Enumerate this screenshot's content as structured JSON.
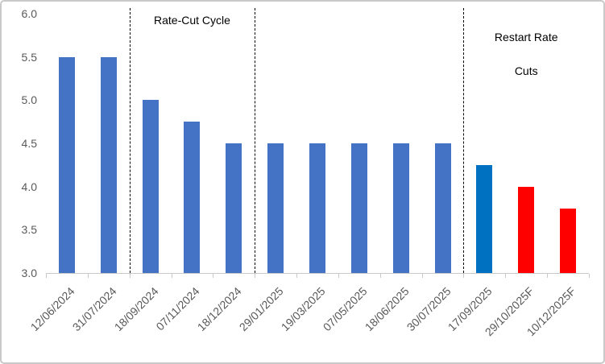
{
  "chart_data": {
    "type": "bar",
    "title": "",
    "xlabel": "",
    "ylabel": "",
    "categories": [
      "12/06/2024",
      "31/07/2024",
      "18/09/2024",
      "07/11/2024",
      "18/12/2024",
      "29/01/2025",
      "19/03/2025",
      "07/05/2025",
      "18/06/2025",
      "30/07/2025",
      "17/09/2025",
      "29/10/2025F",
      "10/12/2025F"
    ],
    "values": [
      5.5,
      5.5,
      5.0,
      4.75,
      4.5,
      4.5,
      4.5,
      4.5,
      4.5,
      4.5,
      4.25,
      4.0,
      3.75
    ],
    "bar_colors": [
      "#4472C4",
      "#4472C4",
      "#4472C4",
      "#4472C4",
      "#4472C4",
      "#4472C4",
      "#4472C4",
      "#4472C4",
      "#4472C4",
      "#4472C4",
      "#0070C0",
      "#FF0000",
      "#FF0000"
    ],
    "ylim": [
      3.0,
      6.0
    ],
    "ytick_labels": [
      "6.0",
      "5.5",
      "5.0",
      "4.5",
      "4.0",
      "3.5",
      "3.0"
    ],
    "grid": false,
    "legend": false,
    "dividers": [
      2,
      5,
      10
    ],
    "annotations": [
      {
        "id": "rate-cut-cycle",
        "lines": [
          "Rate-Cut Cycle"
        ],
        "span": [
          2,
          5
        ]
      },
      {
        "id": "restart-rate-cuts",
        "lines": [
          "Restart Rate",
          "Cuts"
        ],
        "span": [
          10,
          13
        ]
      }
    ]
  },
  "colors": {
    "bar_default": "#4472C4",
    "bar_highlight": "#0070C0",
    "bar_forecast": "#FF0000",
    "axis_line": "#C9C9C9",
    "tick_text": "#595959",
    "annotation_text": "#000000",
    "divider": "#000000",
    "frame_border": "#C9C9C9",
    "background": "#FFFFFF"
  }
}
